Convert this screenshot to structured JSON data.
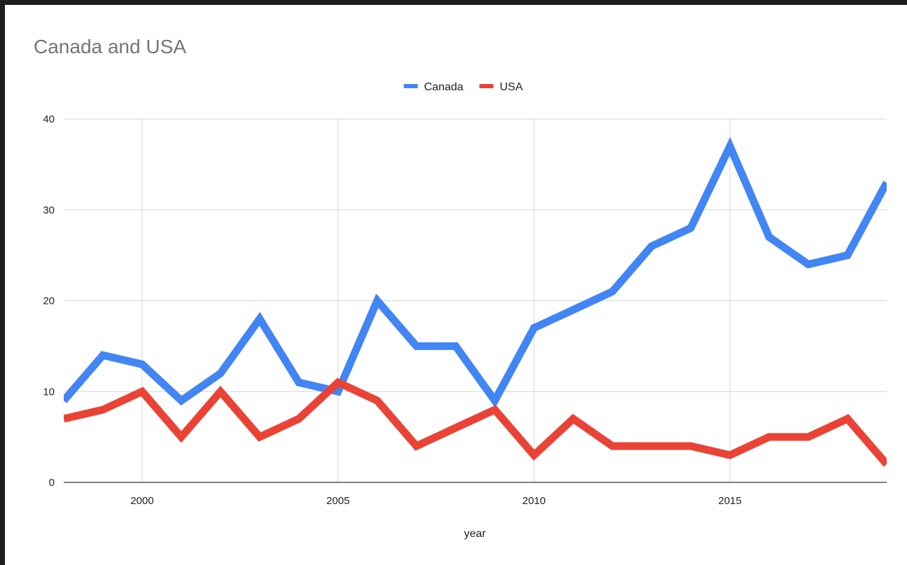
{
  "chart_data": {
    "type": "line",
    "title": "Canada and USA",
    "xlabel": "year",
    "ylabel": "",
    "xlim": [
      1998,
      2019
    ],
    "ylim": [
      0,
      40
    ],
    "x_ticks": [
      2000,
      2005,
      2010,
      2015
    ],
    "y_ticks": [
      0,
      10,
      20,
      30,
      40
    ],
    "grid": true,
    "legend_position": "top-center",
    "x": [
      1998,
      1999,
      2000,
      2001,
      2002,
      2003,
      2004,
      2005,
      2006,
      2007,
      2008,
      2009,
      2010,
      2011,
      2012,
      2013,
      2014,
      2015,
      2016,
      2017,
      2018,
      2019
    ],
    "series": [
      {
        "name": "Canada",
        "color": "#4285f4",
        "values": [
          9,
          14,
          13,
          9,
          12,
          18,
          11,
          10,
          20,
          15,
          15,
          9,
          17,
          19,
          21,
          26,
          28,
          37,
          27,
          24,
          25,
          33
        ]
      },
      {
        "name": "USA",
        "color": "#ea4335",
        "values": [
          7,
          8,
          10,
          5,
          10,
          5,
          7,
          11,
          9,
          4,
          6,
          8,
          3,
          7,
          4,
          4,
          4,
          3,
          5,
          5,
          7,
          2
        ]
      }
    ]
  }
}
